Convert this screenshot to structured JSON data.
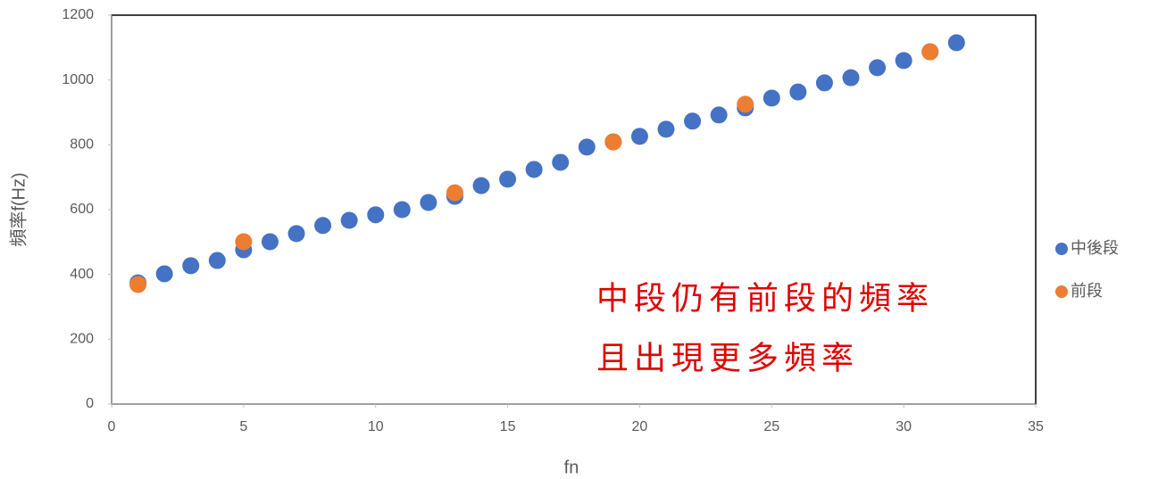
{
  "chart_data": {
    "type": "scatter",
    "xlabel": "fn",
    "ylabel": "頻率f(Hz)",
    "annotations": [
      "中段仍有前段的頻率",
      "且出現更多頻率"
    ],
    "xlim": [
      0,
      35
    ],
    "xticks": [
      0,
      5,
      10,
      15,
      20,
      25,
      30,
      35
    ],
    "ylim": [
      0,
      1200
    ],
    "yticks": [
      0,
      200,
      400,
      600,
      800,
      1000,
      1200
    ],
    "legend": "right",
    "series": [
      {
        "name": "中後段",
        "color": "#4472c4",
        "x": [
          1,
          2,
          3,
          4,
          5,
          6,
          7,
          8,
          9,
          10,
          11,
          12,
          13,
          14,
          15,
          16,
          17,
          18,
          19,
          20,
          21,
          22,
          23,
          24,
          25,
          26,
          27,
          28,
          29,
          30,
          31,
          32
        ],
        "values": [
          374,
          402,
          427,
          443,
          476,
          501,
          526,
          551,
          567,
          584,
          600,
          622,
          641,
          674,
          694,
          724,
          746,
          793,
          809,
          826,
          848,
          873,
          892,
          914,
          944,
          963,
          991,
          1007,
          1038,
          1060,
          1087,
          1115
        ]
      },
      {
        "name": "前段",
        "color": "#ed7d31",
        "x": [
          1,
          5,
          13,
          19,
          24,
          31
        ],
        "values": [
          369,
          501,
          652,
          809,
          925,
          1087
        ]
      }
    ]
  }
}
